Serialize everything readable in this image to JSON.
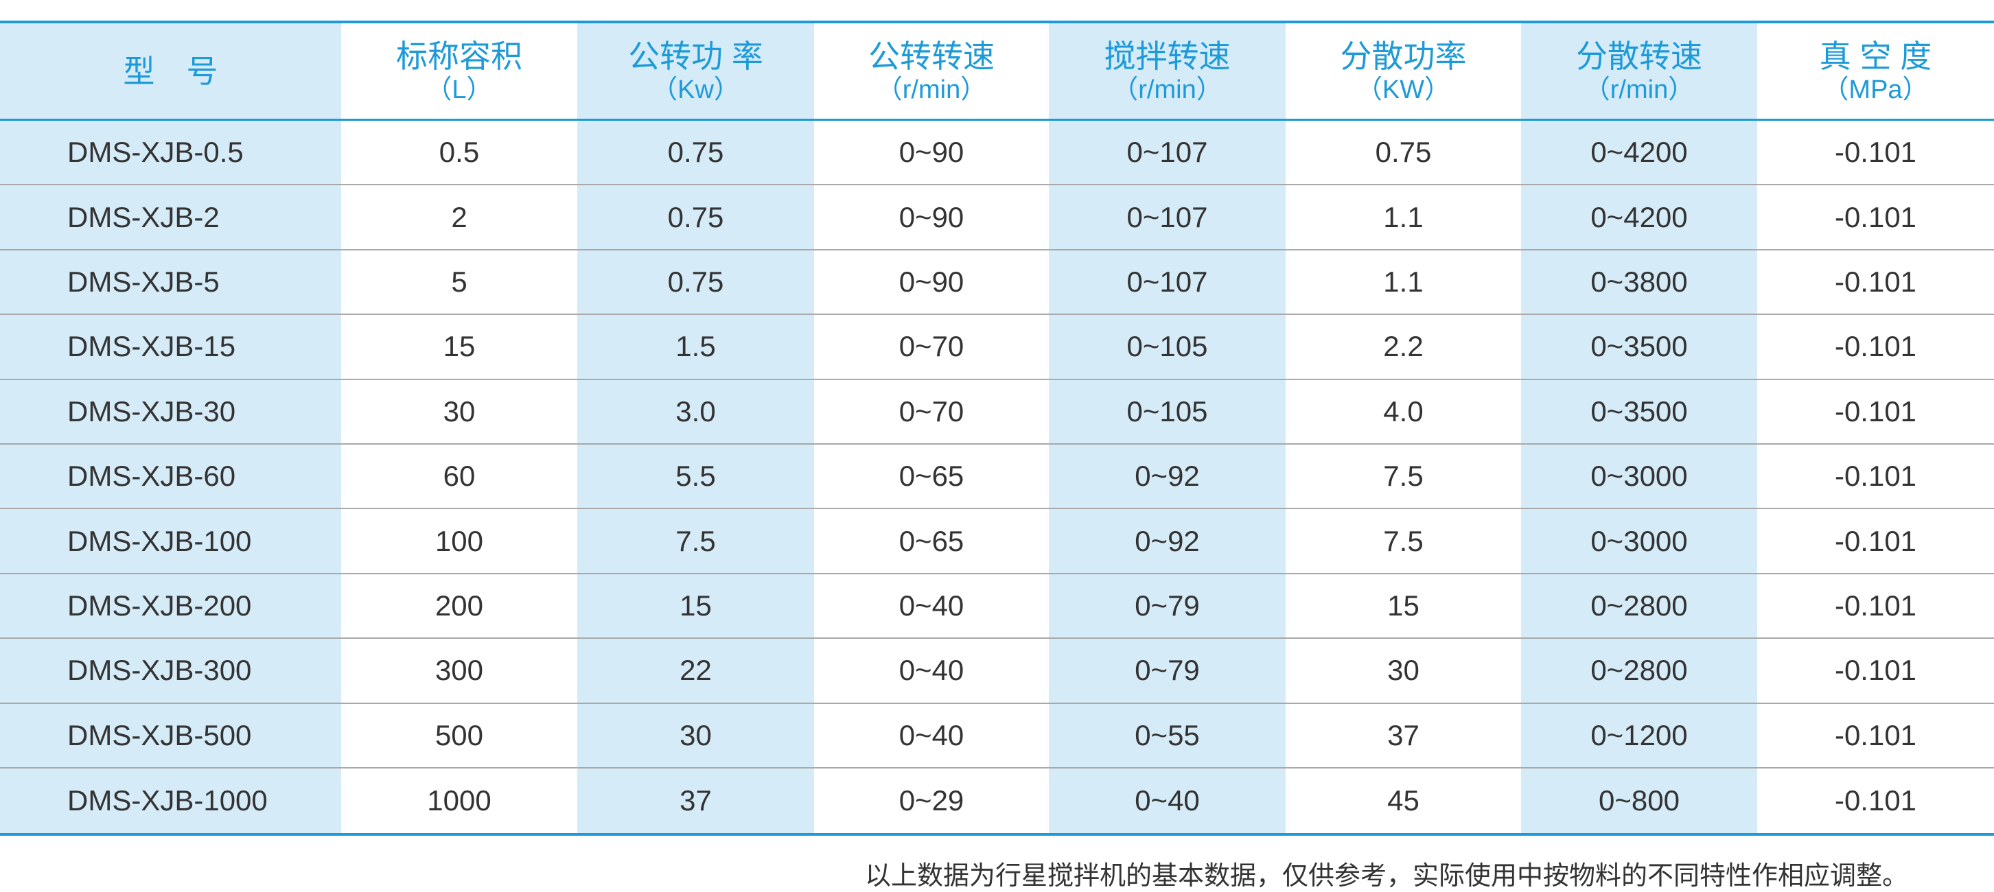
{
  "table": {
    "header": [
      {
        "title": "型　号"
      },
      {
        "title": "标称容积",
        "unit": "（L）"
      },
      {
        "title": "公转功 率",
        "unit": "（Kw）"
      },
      {
        "title": "公转转速",
        "unit": "（r/min）"
      },
      {
        "title": "搅拌转速",
        "unit": "（r/min）"
      },
      {
        "title": "分散功率",
        "unit": "（KW）"
      },
      {
        "title": "分散转速",
        "unit": "（r/min）"
      },
      {
        "title": "真 空 度",
        "unit": "（MPa）"
      }
    ],
    "rows": [
      [
        "DMS-XJB-0.5",
        "0.5",
        "0.75",
        "0~90",
        "0~107",
        "0.75",
        "0~4200",
        "-0.101"
      ],
      [
        "DMS-XJB-2",
        "2",
        "0.75",
        "0~90",
        "0~107",
        "1.1",
        "0~4200",
        "-0.101"
      ],
      [
        "DMS-XJB-5",
        "5",
        "0.75",
        "0~90",
        "0~107",
        "1.1",
        "0~3800",
        "-0.101"
      ],
      [
        "DMS-XJB-15",
        "15",
        "1.5",
        "0~70",
        "0~105",
        "2.2",
        "0~3500",
        "-0.101"
      ],
      [
        "DMS-XJB-30",
        "30",
        "3.0",
        "0~70",
        "0~105",
        "4.0",
        "0~3500",
        "-0.101"
      ],
      [
        "DMS-XJB-60",
        "60",
        "5.5",
        "0~65",
        "0~92",
        "7.5",
        "0~3000",
        "-0.101"
      ],
      [
        "DMS-XJB-100",
        "100",
        "7.5",
        "0~65",
        "0~92",
        "7.5",
        "0~3000",
        "-0.101"
      ],
      [
        "DMS-XJB-200",
        "200",
        "15",
        "0~40",
        "0~79",
        "15",
        "0~2800",
        "-0.101"
      ],
      [
        "DMS-XJB-300",
        "300",
        "22",
        "0~40",
        "0~79",
        "30",
        "0~2800",
        "-0.101"
      ],
      [
        "DMS-XJB-500",
        "500",
        "30",
        "0~40",
        "0~55",
        "37",
        "0~1200",
        "-0.101"
      ],
      [
        "DMS-XJB-1000",
        "1000",
        "37",
        "0~29",
        "0~40",
        "45",
        "0~800",
        "-0.101"
      ]
    ]
  },
  "footnote": "以上数据为行星搅拌机的基本数据，仅供参考，实际使用中按物料的不同特性作相应调整。"
}
